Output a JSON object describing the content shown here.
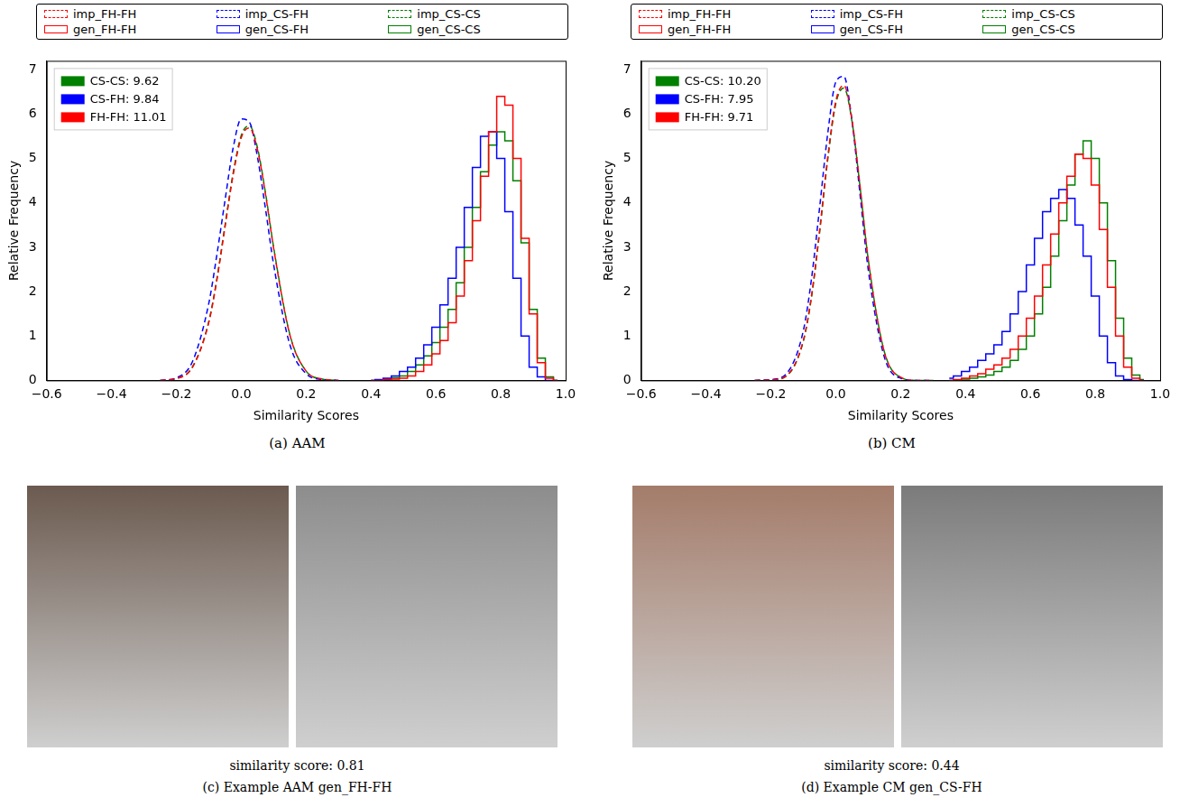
{
  "chart_data": [
    {
      "type": "line",
      "caption": "(a) AAM",
      "x_label": "Similarity Scores",
      "y_label": "Relative Frequency",
      "xlim": [
        -0.6,
        1.0
      ],
      "xticks": [
        {
          "value": -0.6,
          "label": "−0.6"
        },
        {
          "value": -0.4,
          "label": "−0.4"
        },
        {
          "value": -0.2,
          "label": "−0.2"
        },
        {
          "value": 0,
          "label": "0.0"
        },
        0.2,
        0.4,
        0.6,
        0.8,
        {
          "value": 1.0,
          "label": "1.0"
        }
      ],
      "ylim": [
        0,
        7.2
      ],
      "yticks": [
        0,
        1,
        2,
        3,
        4,
        5,
        6,
        7
      ],
      "grid": false,
      "legend": "top",
      "annotations": [
        {
          "text": "CS-CS: 9.62",
          "color": "#008000"
        },
        {
          "text": "CS-FH: 9.84",
          "color": "#0000ff"
        },
        {
          "text": "FH-FH: 11.01",
          "color": "#ff0000"
        }
      ],
      "series": [
        {
          "name": "imp_FH-FH",
          "color": "#ff0000",
          "line_style": "dashed",
          "x": [
            -0.25,
            -0.2,
            -0.15,
            -0.1,
            -0.075,
            -0.05,
            -0.025,
            0,
            0.025,
            0.05,
            0.075,
            0.1,
            0.15,
            0.2,
            0.25,
            0.3
          ],
          "values": [
            0,
            0.04,
            0.3,
            1.31,
            2.27,
            3.46,
            4.63,
            5.47,
            5.69,
            5.2,
            4.18,
            2.97,
            1.02,
            0.21,
            0.03,
            0
          ]
        },
        {
          "name": "imp_CS-FH",
          "color": "#0000ff",
          "line_style": "dashed",
          "x": [
            -0.25,
            -0.2,
            -0.15,
            -0.1,
            -0.075,
            -0.05,
            -0.025,
            0,
            0.025,
            0.05,
            0.075,
            0.1,
            0.15,
            0.2,
            0.25,
            0.3
          ],
          "values": [
            0,
            0.06,
            0.43,
            1.74,
            2.84,
            4.06,
            5.24,
            5.89,
            5.82,
            5.03,
            3.85,
            2.6,
            0.8,
            0.15,
            0.02,
            0
          ]
        },
        {
          "name": "imp_CS-CS",
          "color": "#008000",
          "line_style": "dashed",
          "x": [
            -0.25,
            -0.2,
            -0.15,
            -0.1,
            -0.075,
            -0.05,
            -0.025,
            0,
            0.025,
            0.05,
            0.075,
            0.1,
            0.15,
            0.2,
            0.25,
            0.3
          ],
          "values": [
            0,
            0.04,
            0.31,
            1.33,
            2.3,
            3.5,
            4.68,
            5.52,
            5.74,
            5.24,
            4.21,
            2.99,
            1.03,
            0.21,
            0.03,
            0
          ]
        },
        {
          "name": "gen_FH-FH",
          "color": "#ff0000",
          "line_style": "steps",
          "x": [
            0.4,
            0.425,
            0.45,
            0.475,
            0.5,
            0.525,
            0.55,
            0.575,
            0.6,
            0.625,
            0.65,
            0.675,
            0.7,
            0.725,
            0.75,
            0.775,
            0.8,
            0.825,
            0.85,
            0.875,
            0.9,
            0.925,
            0.95,
            0.975
          ],
          "values": [
            0,
            0,
            0.02,
            0.03,
            0.05,
            0.1,
            0.2,
            0.35,
            0.6,
            0.9,
            1.3,
            1.9,
            2.7,
            3.6,
            4.6,
            5.6,
            6.4,
            6.2,
            5.0,
            3.2,
            1.5,
            0.4,
            0.05,
            0
          ]
        },
        {
          "name": "gen_CS-FH",
          "color": "#0000ff",
          "line_style": "steps",
          "x": [
            0.4,
            0.425,
            0.45,
            0.475,
            0.5,
            0.525,
            0.55,
            0.575,
            0.6,
            0.625,
            0.65,
            0.675,
            0.7,
            0.725,
            0.75,
            0.775,
            0.8,
            0.825,
            0.85,
            0.875,
            0.9,
            0.925,
            0.95,
            0.975
          ],
          "values": [
            0,
            0.02,
            0.05,
            0.1,
            0.2,
            0.3,
            0.5,
            0.8,
            1.2,
            1.7,
            2.3,
            3.0,
            3.9,
            4.8,
            5.5,
            5.6,
            5.0,
            3.8,
            2.3,
            1.0,
            0.3,
            0.08,
            0,
            0
          ]
        },
        {
          "name": "gen_CS-CS",
          "color": "#008000",
          "line_style": "steps",
          "x": [
            0.4,
            0.425,
            0.45,
            0.475,
            0.5,
            0.525,
            0.55,
            0.575,
            0.6,
            0.625,
            0.65,
            0.675,
            0.7,
            0.725,
            0.75,
            0.775,
            0.8,
            0.825,
            0.85,
            0.875,
            0.9,
            0.925,
            0.95,
            0.975
          ],
          "values": [
            0,
            0.01,
            0.03,
            0.06,
            0.1,
            0.2,
            0.35,
            0.55,
            0.85,
            1.2,
            1.6,
            2.2,
            3.0,
            3.9,
            4.7,
            5.3,
            5.6,
            5.4,
            4.5,
            3.1,
            1.6,
            0.5,
            0.08,
            0
          ]
        }
      ]
    },
    {
      "type": "line",
      "caption": "(b) CM",
      "x_label": "Similarity Scores",
      "y_label": "Relative Frequency",
      "xlim": [
        -0.6,
        1.0
      ],
      "xticks": [
        {
          "value": -0.6,
          "label": "−0.6"
        },
        {
          "value": -0.4,
          "label": "−0.4"
        },
        {
          "value": -0.2,
          "label": "−0.2"
        },
        {
          "value": 0,
          "label": "0.0"
        },
        0.2,
        0.4,
        0.6,
        0.8,
        {
          "value": 1.0,
          "label": "1.0"
        }
      ],
      "ylim": [
        0,
        7.2
      ],
      "yticks": [
        0,
        1,
        2,
        3,
        4,
        5,
        6,
        7
      ],
      "grid": false,
      "legend": "top",
      "annotations": [
        {
          "text": "CS-CS: 10.20",
          "color": "#008000"
        },
        {
          "text": "CS-FH: 7.95",
          "color": "#0000ff"
        },
        {
          "text": "FH-FH: 9.71",
          "color": "#ff0000"
        }
      ],
      "series": [
        {
          "name": "imp_FH-FH",
          "color": "#ff0000",
          "line_style": "dashed",
          "x": [
            -0.25,
            -0.2,
            -0.15,
            -0.1,
            -0.075,
            -0.05,
            -0.025,
            0,
            0.025,
            0.05,
            0.075,
            0.1,
            0.15,
            0.2,
            0.25,
            0.3
          ],
          "values": [
            0,
            0.01,
            0.12,
            0.9,
            1.9,
            3.37,
            5.02,
            6.29,
            6.65,
            5.87,
            4.37,
            2.73,
            0.63,
            0.07,
            0,
            0
          ]
        },
        {
          "name": "imp_CS-FH",
          "color": "#0000ff",
          "line_style": "dashed",
          "x": [
            -0.25,
            -0.2,
            -0.15,
            -0.1,
            -0.075,
            -0.05,
            -0.025,
            0,
            0.025,
            0.05,
            0.075,
            0.1,
            0.15,
            0.2,
            0.25,
            0.3
          ],
          "values": [
            0,
            0.02,
            0.17,
            1.12,
            2.28,
            3.88,
            5.55,
            6.72,
            6.85,
            5.85,
            4.18,
            2.5,
            0.52,
            0.05,
            0,
            0
          ]
        },
        {
          "name": "imp_CS-CS",
          "color": "#008000",
          "line_style": "dashed",
          "x": [
            -0.25,
            -0.2,
            -0.15,
            -0.1,
            -0.075,
            -0.05,
            -0.025,
            0,
            0.025,
            0.05,
            0.075,
            0.1,
            0.15,
            0.2,
            0.25,
            0.3
          ],
          "values": [
            0,
            0.01,
            0.11,
            0.88,
            1.86,
            3.32,
            4.96,
            6.23,
            6.59,
            5.84,
            4.35,
            2.73,
            0.64,
            0.07,
            0,
            0
          ]
        },
        {
          "name": "gen_FH-FH",
          "color": "#ff0000",
          "line_style": "steps",
          "x": [
            0.35,
            0.375,
            0.4,
            0.425,
            0.45,
            0.475,
            0.5,
            0.525,
            0.55,
            0.575,
            0.6,
            0.625,
            0.65,
            0.675,
            0.7,
            0.725,
            0.75,
            0.775,
            0.8,
            0.825,
            0.85,
            0.875,
            0.9,
            0.925,
            0.95
          ],
          "values": [
            0,
            0.02,
            0.05,
            0.1,
            0.15,
            0.25,
            0.35,
            0.5,
            0.7,
            1.0,
            1.4,
            1.9,
            2.6,
            3.3,
            4.0,
            4.6,
            5.1,
            5.0,
            4.4,
            3.4,
            2.1,
            1.0,
            0.3,
            0.05,
            0
          ]
        },
        {
          "name": "gen_CS-FH",
          "color": "#0000ff",
          "line_style": "steps",
          "x": [
            0.35,
            0.375,
            0.4,
            0.425,
            0.45,
            0.475,
            0.5,
            0.525,
            0.55,
            0.575,
            0.6,
            0.625,
            0.65,
            0.675,
            0.7,
            0.725,
            0.75,
            0.775,
            0.8,
            0.825,
            0.85,
            0.875,
            0.9,
            0.925,
            0.95
          ],
          "values": [
            0.05,
            0.1,
            0.2,
            0.3,
            0.45,
            0.6,
            0.8,
            1.1,
            1.5,
            2.0,
            2.6,
            3.2,
            3.8,
            4.1,
            4.3,
            4.1,
            3.5,
            2.8,
            1.9,
            1.0,
            0.4,
            0.1,
            0.02,
            0,
            0
          ]
        },
        {
          "name": "gen_CS-CS",
          "color": "#008000",
          "line_style": "steps",
          "x": [
            0.35,
            0.375,
            0.4,
            0.425,
            0.45,
            0.475,
            0.5,
            0.525,
            0.55,
            0.575,
            0.6,
            0.625,
            0.65,
            0.675,
            0.7,
            0.725,
            0.75,
            0.775,
            0.8,
            0.825,
            0.85,
            0.875,
            0.9,
            0.925,
            0.95
          ],
          "values": [
            0,
            0.01,
            0.03,
            0.05,
            0.08,
            0.12,
            0.2,
            0.3,
            0.45,
            0.7,
            1.0,
            1.5,
            2.1,
            2.8,
            3.6,
            4.4,
            5.1,
            5.4,
            5.0,
            4.0,
            2.7,
            1.4,
            0.5,
            0.12,
            0.02
          ]
        }
      ]
    }
  ],
  "images": [
    {
      "similarity_text": "similarity score: 0.81",
      "caption": "(c) Example AAM gen_FH-FH"
    },
    {
      "similarity_text": "similarity score: 0.44",
      "caption": "(d) Example CM gen_CS-FH"
    }
  ]
}
